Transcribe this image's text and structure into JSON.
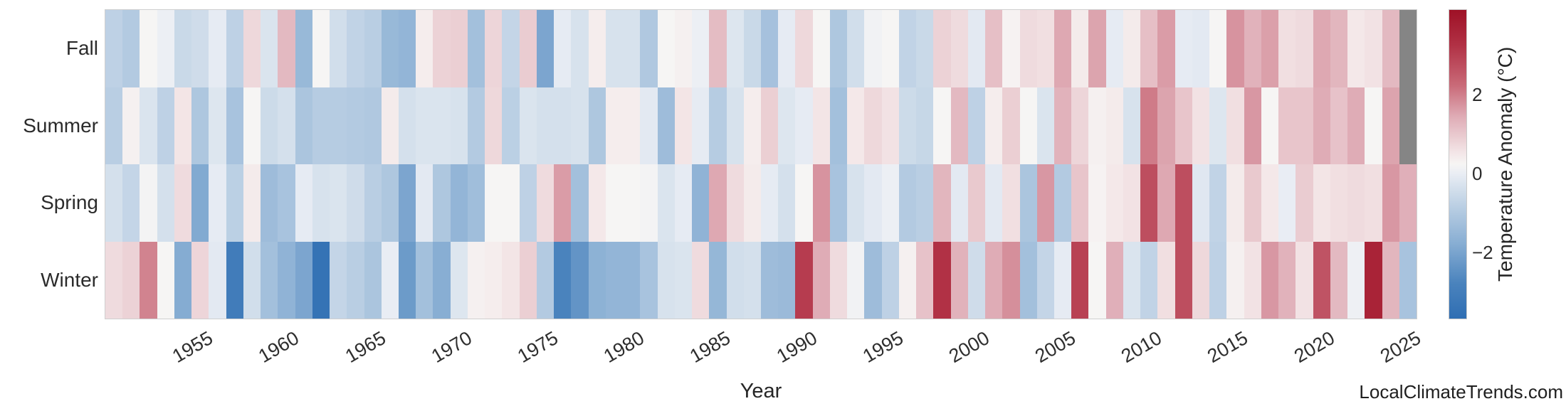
{
  "labels": {
    "xlabel": "Year",
    "watermark": "LocalClimateTrends.com",
    "colorbar_label": "Temperature Anomaly (°C)"
  },
  "colorbar": {
    "tick_labels": [
      "2",
      "0",
      "−2"
    ],
    "tick_values": [
      2,
      0,
      -2
    ],
    "vmin": -3.9,
    "vmax": 3.9
  },
  "colors": {
    "missing_cell": "#858585",
    "colormap_stops": [
      [
        -3.9,
        "#2f6eb3"
      ],
      [
        -3.0,
        "#4a83bd"
      ],
      [
        -2.0,
        "#88aed3"
      ],
      [
        -1.2,
        "#b3cae1"
      ],
      [
        -0.6,
        "#d4e0ec"
      ],
      [
        -0.25,
        "#e9edf4"
      ],
      [
        0.0,
        "#f6f5f4"
      ],
      [
        0.25,
        "#f4e8e9"
      ],
      [
        0.6,
        "#ecd2d6"
      ],
      [
        1.2,
        "#dfacb6"
      ],
      [
        2.0,
        "#c96a78"
      ],
      [
        3.0,
        "#b13145"
      ],
      [
        3.9,
        "#9e1126"
      ]
    ]
  },
  "chart_data": {
    "type": "heatmap",
    "title": "",
    "xlabel": "Year",
    "ylabel": "",
    "value_unit": "Temperature Anomaly (°C)",
    "x_range": [
      1950,
      2025
    ],
    "x_tick_years": [
      1955,
      1960,
      1965,
      1970,
      1975,
      1980,
      1985,
      1990,
      1995,
      2000,
      2005,
      2010,
      2015,
      2020,
      2025
    ],
    "rows": [
      "Fall",
      "Summer",
      "Spring",
      "Winter"
    ],
    "missing": "gray cells = no data (Fall 2025, Summer 2025)",
    "series": [
      {
        "name": "Fall",
        "values": [
          -1.0,
          -1.2,
          0.0,
          -0.2,
          -0.8,
          -0.7,
          -0.3,
          -1.0,
          0.5,
          -0.5,
          1.0,
          -1.7,
          0.0,
          -0.65,
          -0.95,
          -1.1,
          -1.7,
          -1.8,
          0.15,
          0.6,
          0.65,
          -1.5,
          0.55,
          -0.9,
          0.7,
          -2.2,
          -0.3,
          -0.55,
          0.15,
          -0.55,
          -0.55,
          -1.25,
          0.0,
          0.1,
          -0.2,
          0.95,
          -0.45,
          -0.8,
          -1.45,
          -0.3,
          0.5,
          0.0,
          -1.3,
          -0.65,
          -0.1,
          0.0,
          -0.95,
          -0.8,
          0.6,
          0.45,
          -0.35,
          0.9,
          0.05,
          0.45,
          0.4,
          1.25,
          0.2,
          1.3,
          -0.3,
          0.2,
          0.9,
          1.4,
          -0.3,
          -0.35,
          0.0,
          1.5,
          1.1,
          1.35,
          0.4,
          0.45,
          1.25,
          1.05,
          0.25,
          0.35,
          1.0,
          null
        ]
      },
      {
        "name": "Summer",
        "values": [
          -1.1,
          0.1,
          -0.5,
          -1.0,
          0.3,
          -1.3,
          -0.45,
          -1.4,
          0.0,
          -0.75,
          -0.6,
          -1.35,
          -1.15,
          -1.15,
          -1.2,
          -1.25,
          0.2,
          -0.6,
          -0.5,
          -0.5,
          -0.55,
          -1.2,
          0.5,
          -1.05,
          -0.5,
          -0.6,
          -0.6,
          -0.55,
          -1.3,
          0.15,
          0.15,
          -0.35,
          -1.6,
          0.3,
          -0.3,
          -1.15,
          -0.55,
          0.15,
          0.65,
          -0.45,
          -0.3,
          0.3,
          -1.5,
          0.25,
          0.5,
          0.35,
          -0.75,
          -0.85,
          0.0,
          1.0,
          -1.0,
          0.15,
          0.65,
          0.0,
          -0.5,
          1.1,
          0.55,
          0.1,
          0.2,
          -0.55,
          1.8,
          1.3,
          0.8,
          0.35,
          -0.45,
          0.4,
          1.45,
          0.0,
          0.8,
          0.8,
          1.2,
          0.85,
          1.2,
          0.0,
          1.3,
          null
        ]
      },
      {
        "name": "Spring",
        "values": [
          -0.6,
          -0.9,
          -0.05,
          -0.6,
          0.45,
          -2.1,
          -0.3,
          -1.05,
          0.2,
          -1.6,
          -1.4,
          -0.3,
          -0.55,
          -0.5,
          -0.7,
          -1.1,
          -1.3,
          -2.2,
          -0.35,
          -1.3,
          -1.8,
          -1.55,
          0.0,
          0.0,
          -1.0,
          0.45,
          1.4,
          -1.5,
          0.25,
          0.0,
          0.0,
          -0.05,
          -0.5,
          -0.3,
          -1.85,
          1.25,
          0.45,
          0.2,
          -0.3,
          -0.6,
          0.0,
          1.5,
          -1.4,
          -0.55,
          -0.35,
          -0.2,
          -1.2,
          -1.1,
          1.05,
          -0.35,
          0.75,
          -0.35,
          0.4,
          -1.35,
          1.45,
          -1.2,
          0.8,
          0.05,
          0.25,
          0.35,
          2.5,
          1.25,
          2.5,
          -0.4,
          -0.95,
          0.2,
          0.75,
          0.25,
          -0.25,
          0.7,
          0.3,
          0.4,
          0.45,
          0.4,
          1.45,
          1.15
        ]
      },
      {
        "name": "Winter",
        "values": [
          0.45,
          0.6,
          1.7,
          0.0,
          -2.05,
          0.55,
          -0.35,
          -3.3,
          -0.65,
          -1.5,
          -1.85,
          -2.2,
          -3.7,
          -0.9,
          -1.1,
          -1.35,
          -0.25,
          -2.45,
          -1.5,
          -2.0,
          -0.45,
          0.1,
          0.15,
          0.3,
          0.65,
          -1.2,
          -3.0,
          -2.6,
          -1.9,
          -1.8,
          -1.8,
          -1.4,
          -0.55,
          -0.5,
          0.45,
          -1.75,
          -0.65,
          -0.6,
          -1.6,
          -1.65,
          2.8,
          1.2,
          0.45,
          -0.1,
          -1.6,
          -1.0,
          0.1,
          0.85,
          3.0,
          1.1,
          -0.7,
          1.2,
          1.55,
          -1.5,
          -0.9,
          -0.3,
          2.7,
          0.0,
          1.15,
          -0.5,
          -0.95,
          0.4,
          2.5,
          0.5,
          -1.0,
          0.1,
          0.35,
          1.45,
          1.1,
          0.35,
          2.4,
          1.0,
          -0.15,
          3.4,
          1.05,
          -1.4
        ]
      }
    ]
  },
  "layout_hints": {
    "legend_position": "right-colorbar",
    "grid": "off",
    "x_tick_rotation_deg": 30
  }
}
